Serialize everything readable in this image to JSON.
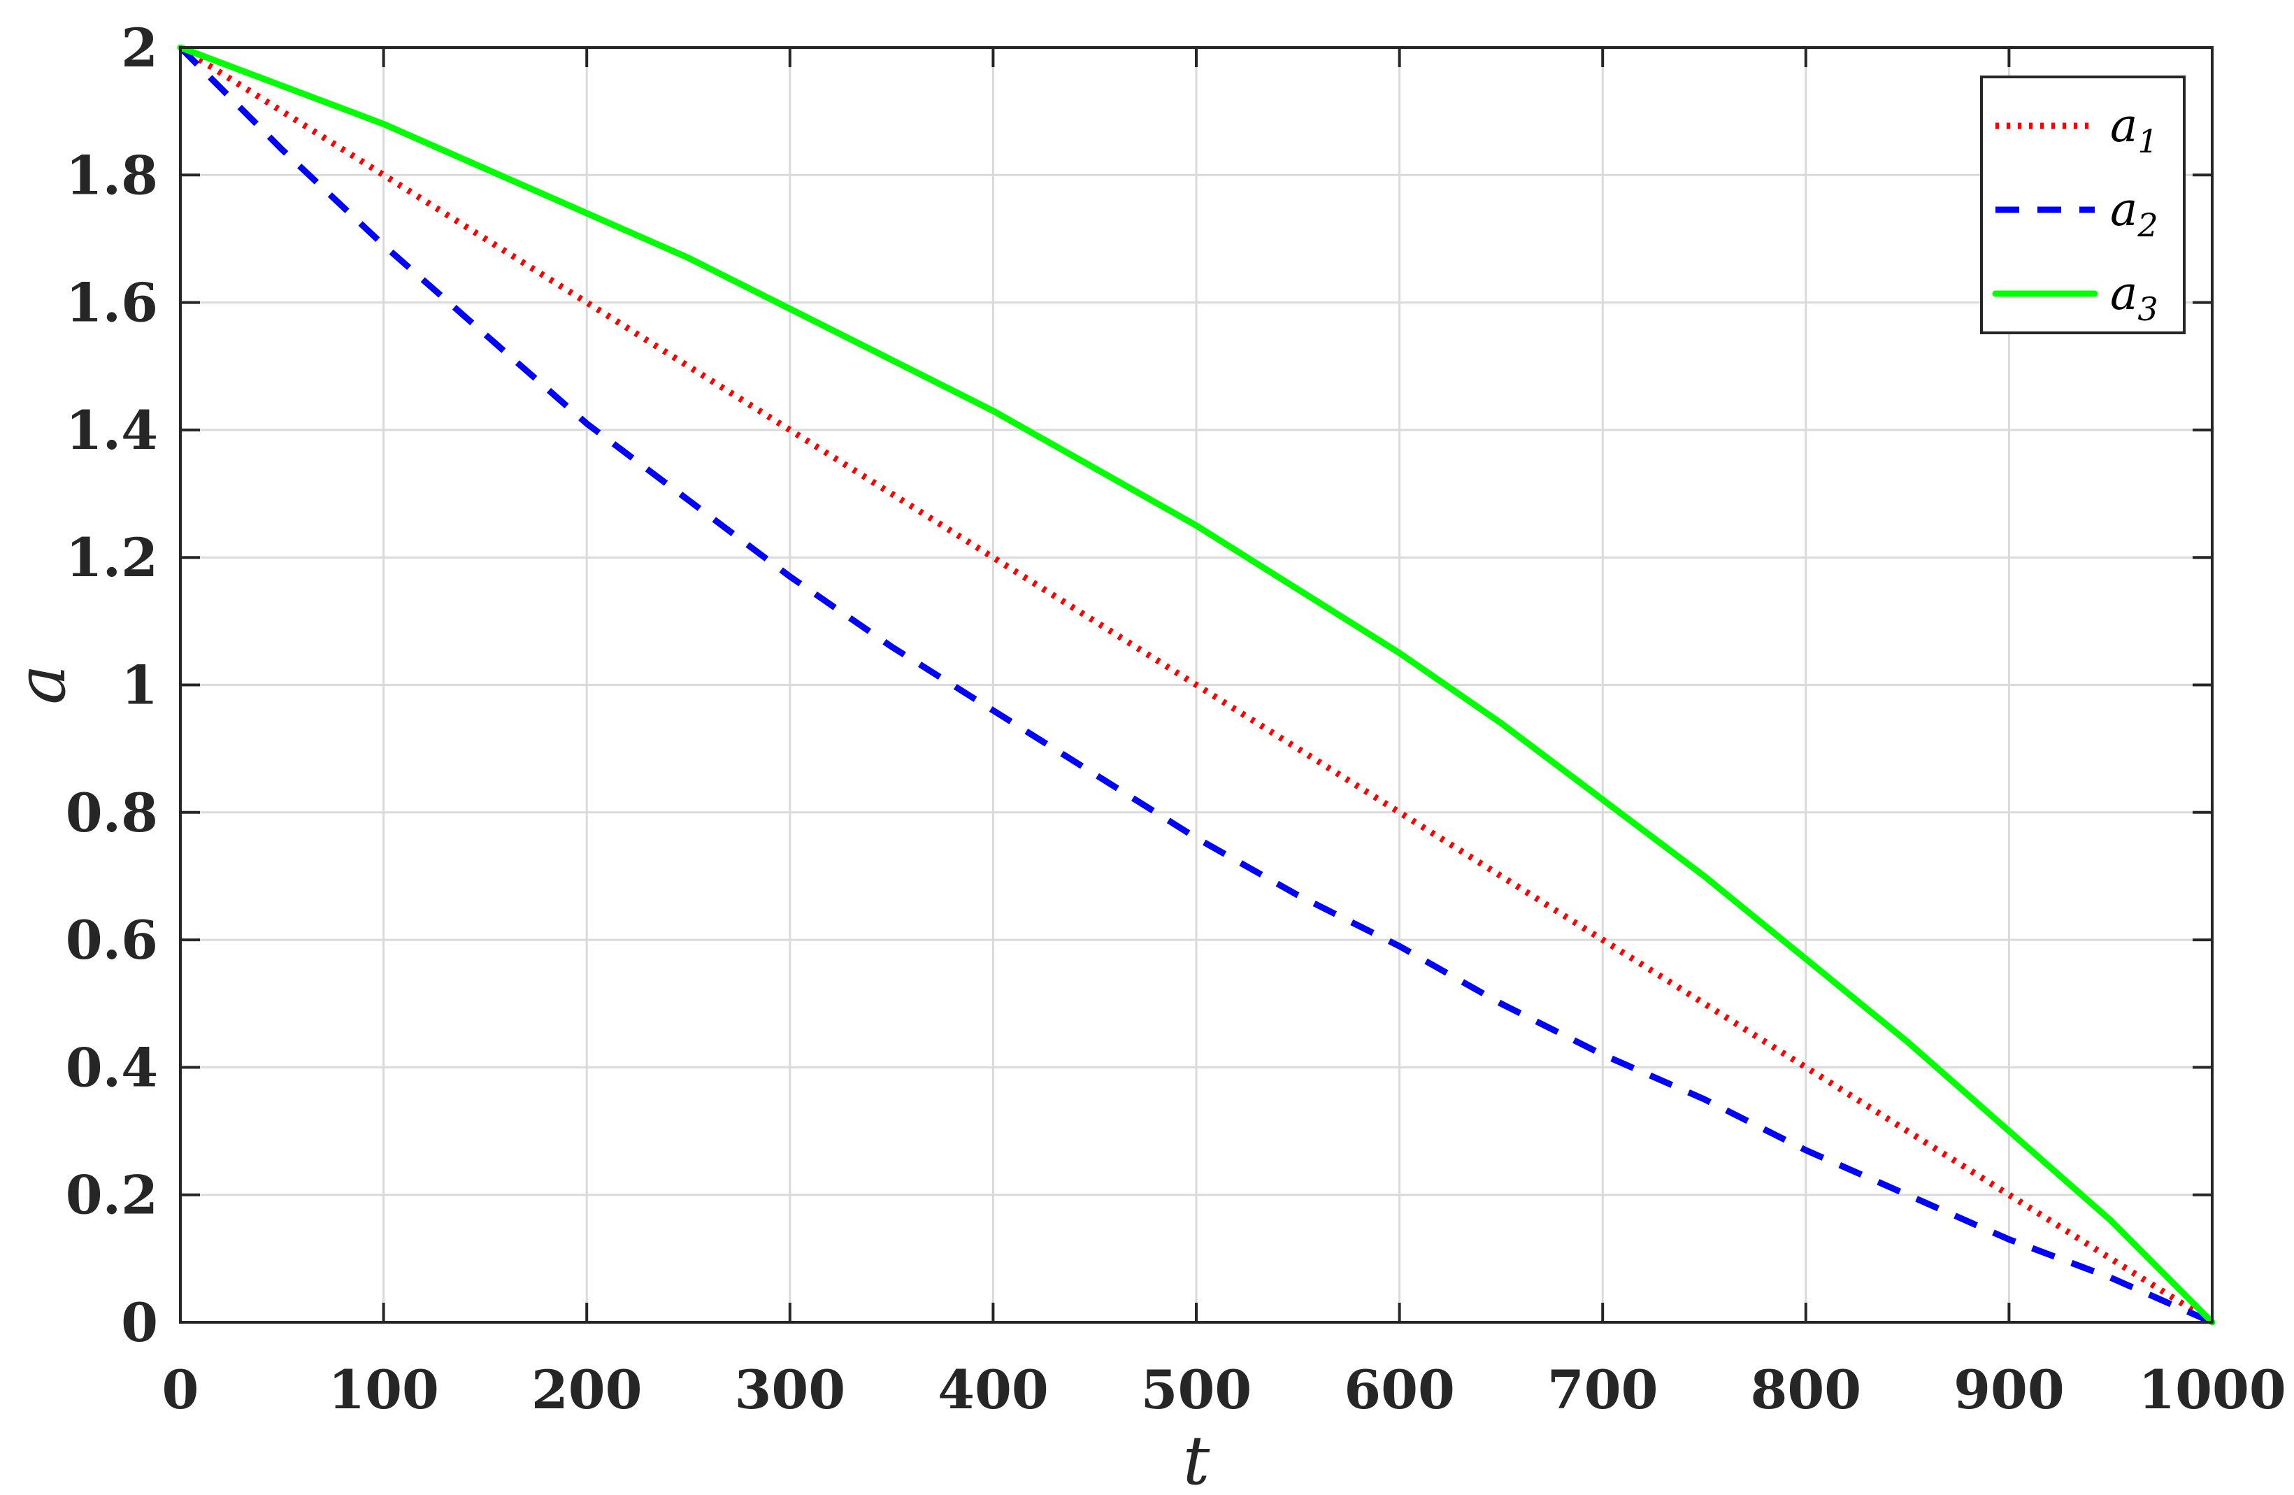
{
  "chart_data": {
    "type": "line",
    "xlabel": "t",
    "ylabel": "a",
    "xlim": [
      0,
      1000
    ],
    "ylim": [
      0,
      2
    ],
    "xticks": [
      0,
      100,
      200,
      300,
      400,
      500,
      600,
      700,
      800,
      900,
      1000
    ],
    "yticks": [
      0,
      0.2,
      0.4,
      0.6,
      0.8,
      1,
      1.2,
      1.4,
      1.6,
      1.8,
      2
    ],
    "xtick_labels": [
      "0",
      "100",
      "200",
      "300",
      "400",
      "500",
      "600",
      "700",
      "800",
      "900",
      "1000"
    ],
    "ytick_labels": [
      "0",
      "0.2",
      "0.4",
      "0.6",
      "0.8",
      "1",
      "1.2",
      "1.4",
      "1.6",
      "1.8",
      "2"
    ],
    "grid": true,
    "legend_position": "top-right",
    "series": [
      {
        "name": "a1",
        "name_base": "a",
        "name_sub": "1",
        "color": "#ff0000",
        "style": "dotted",
        "x": [
          0,
          100,
          200,
          300,
          400,
          500,
          600,
          700,
          800,
          900,
          1000
        ],
        "y": [
          2.0,
          1.8,
          1.6,
          1.4,
          1.2,
          1.0,
          0.8,
          0.6,
          0.4,
          0.2,
          0.0
        ]
      },
      {
        "name": "a2",
        "name_base": "a",
        "name_sub": "2",
        "color": "#0000ff",
        "style": "dashed",
        "x": [
          0,
          50,
          100,
          150,
          200,
          250,
          300,
          350,
          400,
          450,
          500,
          550,
          600,
          650,
          700,
          750,
          800,
          850,
          900,
          950,
          1000
        ],
        "y": [
          2.0,
          1.84,
          1.69,
          1.55,
          1.41,
          1.29,
          1.17,
          1.06,
          0.96,
          0.86,
          0.76,
          0.67,
          0.59,
          0.5,
          0.42,
          0.35,
          0.27,
          0.2,
          0.13,
          0.07,
          0.0
        ]
      },
      {
        "name": "a3",
        "name_base": "a",
        "name_sub": "3",
        "color": "#00ff00",
        "style": "solid",
        "x": [
          0,
          50,
          100,
          150,
          200,
          250,
          300,
          350,
          400,
          450,
          500,
          550,
          600,
          650,
          700,
          750,
          800,
          850,
          900,
          950,
          1000
        ],
        "y": [
          2.0,
          1.94,
          1.88,
          1.81,
          1.74,
          1.67,
          1.59,
          1.51,
          1.43,
          1.34,
          1.25,
          1.15,
          1.05,
          0.94,
          0.82,
          0.7,
          0.57,
          0.44,
          0.3,
          0.16,
          0.0
        ]
      }
    ]
  }
}
